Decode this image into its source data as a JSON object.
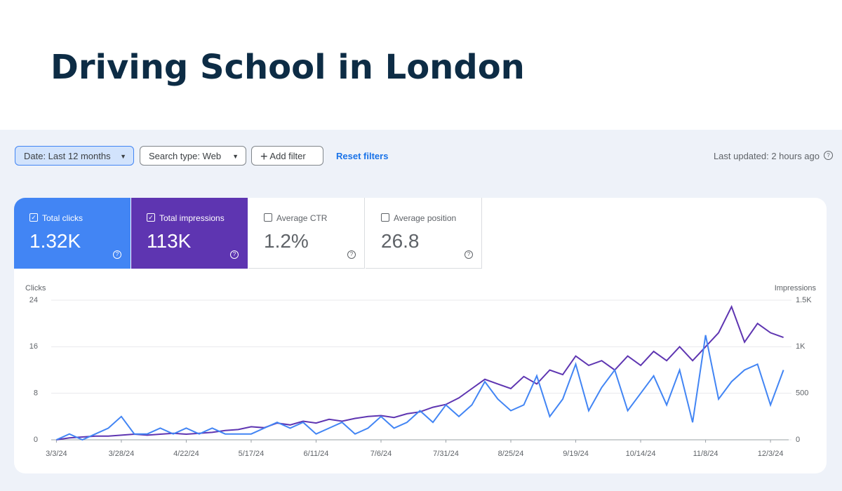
{
  "header": {
    "title": "Driving School in London"
  },
  "toolbar": {
    "date_filter": "Date: Last 12 months",
    "search_type": "Search type: Web",
    "add_filter": "Add filter",
    "reset_filters": "Reset filters",
    "last_updated": "Last updated: 2 hours ago"
  },
  "metrics": [
    {
      "label": "Total clicks",
      "value": "1.32K",
      "selected": true,
      "color": "#4285f4"
    },
    {
      "label": "Total impressions",
      "value": "113K",
      "selected": true,
      "color": "#5e35b1"
    },
    {
      "label": "Average CTR",
      "value": "1.2%",
      "selected": false
    },
    {
      "label": "Average position",
      "value": "26.8",
      "selected": false
    }
  ],
  "chart_data": {
    "type": "line",
    "y_label": "Clicks",
    "y2_label": "Impressions",
    "x": [
      "3/3/24",
      "3/8/24",
      "3/13/24",
      "3/18/24",
      "3/23/24",
      "3/28/24",
      "4/2/24",
      "4/7/24",
      "4/12/24",
      "4/17/24",
      "4/22/24",
      "4/27/24",
      "5/2/24",
      "5/7/24",
      "5/12/24",
      "5/17/24",
      "5/22/24",
      "5/27/24",
      "6/1/24",
      "6/6/24",
      "6/11/24",
      "6/16/24",
      "6/21/24",
      "6/26/24",
      "7/1/24",
      "7/6/24",
      "7/11/24",
      "7/16/24",
      "7/21/24",
      "7/26/24",
      "7/31/24",
      "8/5/24",
      "8/10/24",
      "8/15/24",
      "8/20/24",
      "8/25/24",
      "8/30/24",
      "9/4/24",
      "9/9/24",
      "9/14/24",
      "9/19/24",
      "9/24/24",
      "9/29/24",
      "10/4/24",
      "10/9/24",
      "10/14/24",
      "10/19/24",
      "10/24/24",
      "10/29/24",
      "11/3/24",
      "11/8/24",
      "11/13/24",
      "11/18/24",
      "11/23/24",
      "11/28/24",
      "12/3/24",
      "12/8/24"
    ],
    "xlim": [
      "3/1/24",
      "12/10/24"
    ],
    "xticks": [
      "3/3/24",
      "3/28/24",
      "4/22/24",
      "5/17/24",
      "6/11/24",
      "7/6/24",
      "7/31/24",
      "8/25/24",
      "9/19/24",
      "10/14/24",
      "11/8/24",
      "12/3/24"
    ],
    "ylim": [
      0,
      24
    ],
    "yticks": [
      0,
      8,
      16,
      24
    ],
    "y2lim": [
      0,
      1500
    ],
    "y2ticks": [
      0,
      500,
      {
        "value": 1000,
        "label": "1K"
      },
      {
        "value": 1500,
        "label": "1.5K"
      }
    ],
    "grid": true,
    "series": [
      {
        "name": "Clicks",
        "color": "#4285f4",
        "values": [
          0,
          1,
          0,
          1,
          2,
          4,
          1,
          1,
          2,
          1,
          2,
          1,
          2,
          1,
          1,
          1,
          2,
          3,
          2,
          3,
          1,
          2,
          3,
          1,
          2,
          4,
          2,
          3,
          5,
          3,
          6,
          4,
          6,
          10,
          7,
          5,
          6,
          11,
          4,
          7,
          13,
          5,
          9,
          12,
          5,
          8,
          11,
          6,
          12,
          3,
          18,
          7,
          10,
          12,
          13,
          6,
          12
        ]
      },
      {
        "name": "Impressions",
        "color": "#5e35b1",
        "axis": "y2",
        "values": [
          0,
          20,
          30,
          40,
          40,
          50,
          60,
          50,
          60,
          70,
          60,
          70,
          80,
          100,
          110,
          140,
          130,
          180,
          160,
          200,
          180,
          220,
          200,
          230,
          250,
          260,
          240,
          280,
          300,
          350,
          380,
          450,
          550,
          650,
          600,
          550,
          680,
          600,
          750,
          700,
          900,
          800,
          850,
          750,
          900,
          800,
          950,
          850,
          1000,
          850,
          1000,
          1150,
          1430,
          1050,
          1250,
          1150,
          1100
        ]
      }
    ]
  }
}
